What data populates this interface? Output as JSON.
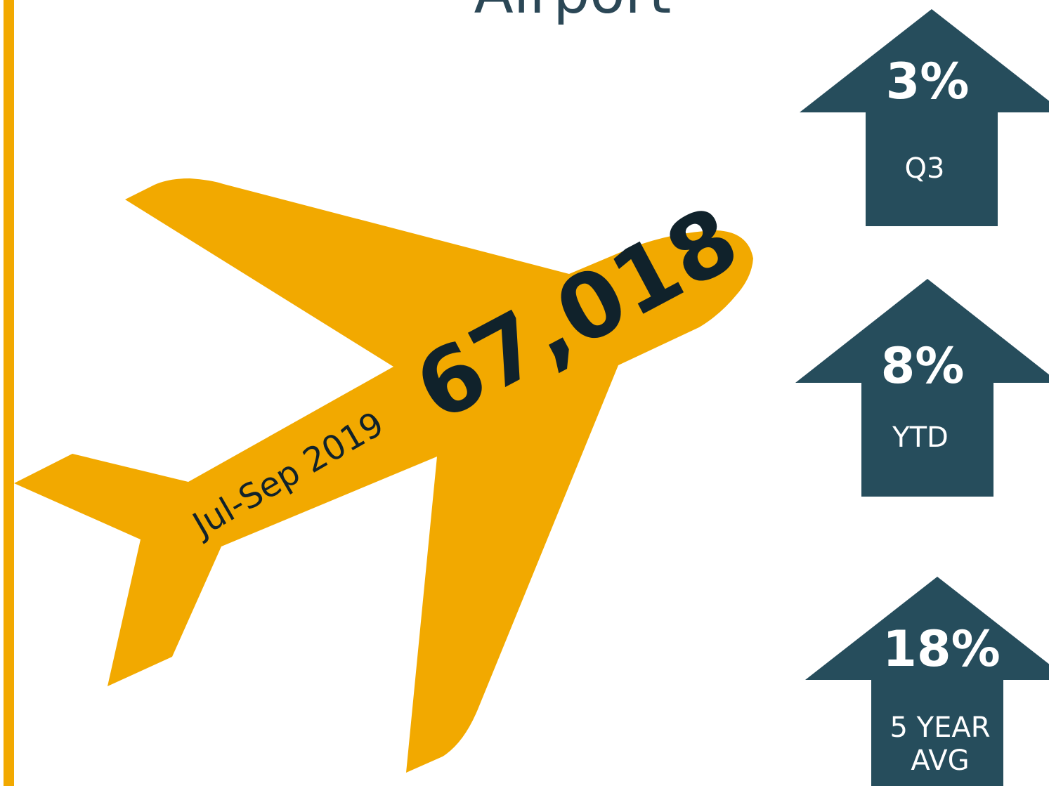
{
  "title": "Airport",
  "total": {
    "value": "67,018",
    "period": "Jul-Sep 2019"
  },
  "changes": [
    {
      "percent": "3%",
      "label_lines": [
        "Q3"
      ]
    },
    {
      "percent": "8%",
      "label_lines": [
        "YTD"
      ]
    },
    {
      "percent": "18%",
      "label_lines": [
        "5 YEAR",
        "AVG"
      ]
    }
  ]
}
